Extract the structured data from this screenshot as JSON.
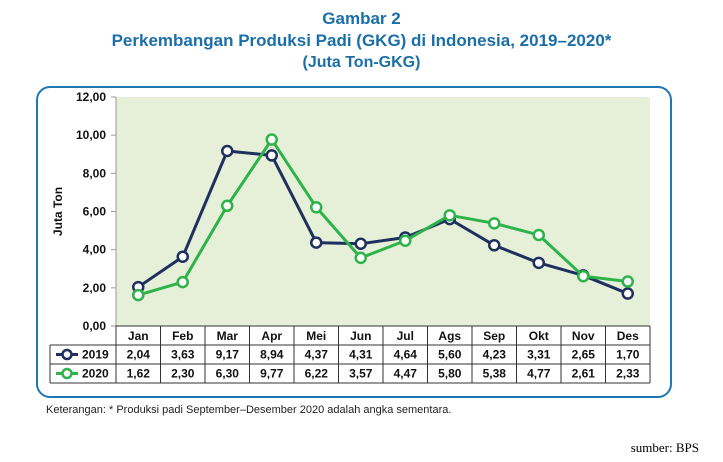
{
  "title_line1": "Gambar 2",
  "title_line2": "Perkembangan Produksi Padi (GKG) di Indonesia, 2019–2020*",
  "title_line3": "(Juta Ton-GKG)",
  "note": "Keterangan: * Produksi padi September–Desember 2020 adalah angka sementara.",
  "source": "sumber: BPS",
  "colors": {
    "s2019": "#1f2f5e",
    "s2020": "#2db34a",
    "plot_bg": "#e6f0d8",
    "frame": "#1f77b4"
  },
  "chart_data": {
    "type": "line",
    "ylabel": "Juta Ton",
    "ylim": [
      0,
      12
    ],
    "yticks": [
      "0,00",
      "2,00",
      "4,00",
      "6,00",
      "8,00",
      "10,00",
      "12,00"
    ],
    "categories": [
      "Jan",
      "Feb",
      "Mar",
      "Apr",
      "Mei",
      "Jun",
      "Jul",
      "Ags",
      "Sep",
      "Okt",
      "Nov",
      "Des"
    ],
    "series": [
      {
        "name": "2019",
        "values": [
          2.04,
          3.63,
          9.17,
          8.94,
          4.37,
          4.31,
          4.64,
          5.6,
          4.23,
          3.31,
          2.65,
          1.7
        ],
        "labels": [
          "2,04",
          "3,63",
          "9,17",
          "8,94",
          "4,37",
          "4,31",
          "4,64",
          "5,60",
          "4,23",
          "3,31",
          "2,65",
          "1,70"
        ]
      },
      {
        "name": "2020",
        "values": [
          1.62,
          2.3,
          6.3,
          9.77,
          6.22,
          3.57,
          4.47,
          5.8,
          5.38,
          4.77,
          2.61,
          2.33
        ],
        "labels": [
          "1,62",
          "2,30",
          "6,30",
          "9,77",
          "6,22",
          "3,57",
          "4,47",
          "5,80",
          "5,38",
          "4,77",
          "2,61",
          "2,33"
        ]
      }
    ],
    "grid": false,
    "legend": "data-table-left"
  }
}
